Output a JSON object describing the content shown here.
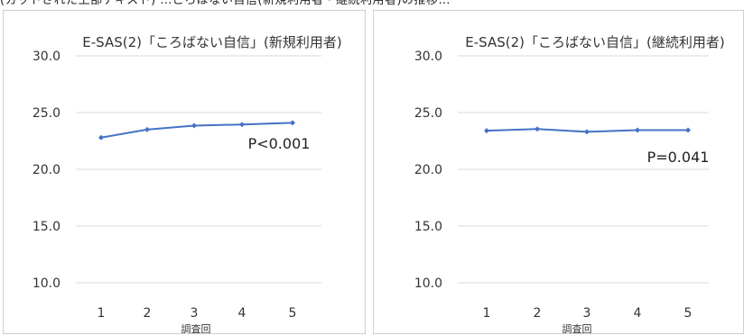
{
  "top_text_fragment": "(カットされた上部テキスト) …ころばない自信(新規利用者・継続利用者)の推移…",
  "chart_data": [
    {
      "type": "line",
      "title": "E-SAS(2)「ころばない自信」(新規利用者)",
      "xlabel": "調査回",
      "ylabel": "",
      "categories": [
        "1",
        "2",
        "3",
        "4",
        "5"
      ],
      "series": [
        {
          "values": [
            22.8,
            23.5,
            23.85,
            23.95,
            24.1
          ]
        }
      ],
      "ylim": [
        10,
        30
      ],
      "yticks": [
        "10.0",
        "15.0",
        "20.0",
        "25.0",
        "30.0"
      ],
      "annotation": "P<0.001",
      "grid": true,
      "color": "#4472c4"
    },
    {
      "type": "line",
      "title": "E-SAS(2)「ころばない自信」(継続利用者)",
      "xlabel": "調査回",
      "ylabel": "",
      "categories": [
        "1",
        "2",
        "3",
        "4",
        "5"
      ],
      "series": [
        {
          "values": [
            23.4,
            23.55,
            23.3,
            23.45,
            23.45
          ]
        }
      ],
      "ylim": [
        10,
        30
      ],
      "yticks": [
        "10.0",
        "15.0",
        "20.0",
        "25.0",
        "30.0"
      ],
      "annotation": "P=0.041",
      "grid": true,
      "color": "#4472c4"
    }
  ]
}
